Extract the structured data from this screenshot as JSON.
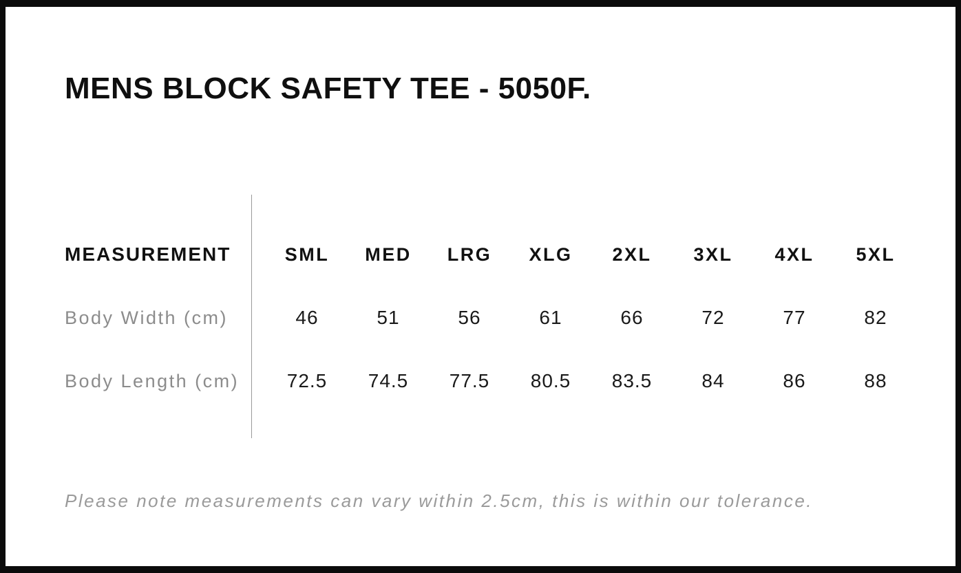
{
  "page": {
    "title": "MENS BLOCK SAFETY TEE - 5050F.",
    "tolerance_note": "Please note measurements can vary within 2.5cm, this is within our tolerance."
  },
  "size_chart": {
    "measurement_header": "MEASUREMENT",
    "size_headers": [
      "SML",
      "MED",
      "LRG",
      "XLG",
      "2XL",
      "3XL",
      "4XL",
      "5XL"
    ],
    "rows": [
      {
        "label": "Body Width (cm)",
        "values": [
          "46",
          "51",
          "56",
          "61",
          "66",
          "72",
          "77",
          "82"
        ]
      },
      {
        "label": "Body Length (cm)",
        "values": [
          "72.5",
          "74.5",
          "77.5",
          "80.5",
          "83.5",
          "84",
          "86",
          "88"
        ]
      }
    ]
  },
  "colors": {
    "frame": "#0b0b0b",
    "text_primary": "#111111",
    "label_gray": "#8c8c8c",
    "note_gray": "#9a9a9a",
    "divider_gray": "#999999"
  }
}
